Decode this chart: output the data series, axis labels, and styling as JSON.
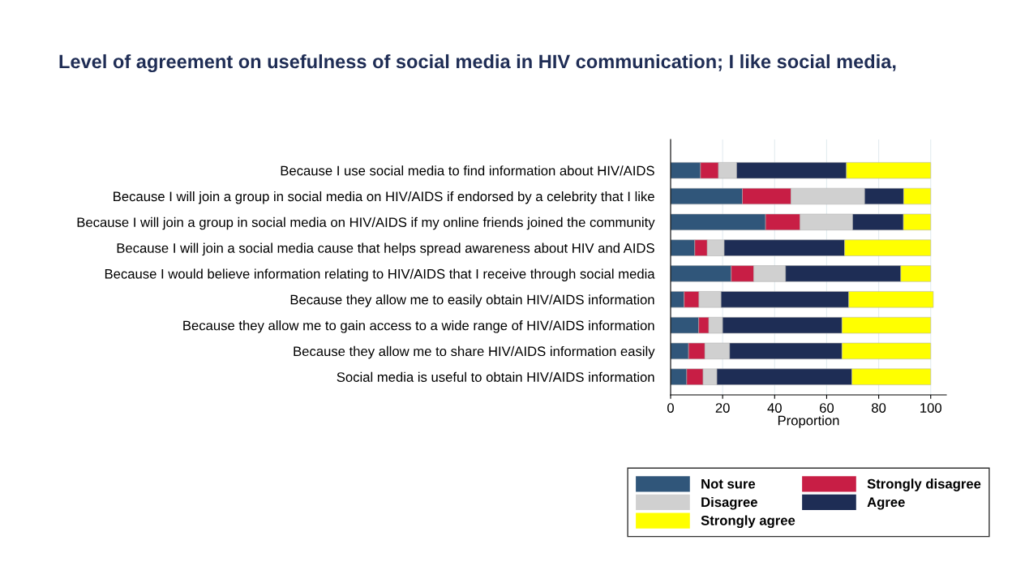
{
  "chart_data": {
    "type": "bar",
    "orientation": "horizontal",
    "stacked": true,
    "title": "Level of agreement on usefulness of social media in HIV communication; I like social media,",
    "xlabel": "Proportion",
    "categories": [
      "Because I use social media to find information about HIV/AIDS",
      "Because I will join a group in social media on HIV/AIDS if endorsed by a celebrity that I like",
      "Because I will join a group in social media on HIV/AIDS if my online friends joined the community",
      "Because I will join a social media cause that helps spread awareness about HIV and AIDS",
      "Because I would believe information relating to HIV/AIDS that I receive through social media",
      "Because they allow me to easily obtain HIV/AIDS information",
      "Because they allow me to gain access to a wide range of HIV/AIDS information",
      "Because they allow me to share HIV/AIDS information easily",
      "Social media is useful to obtain HIV/AIDS information"
    ],
    "series": [
      {
        "name": "Not sure",
        "color": "#30567a",
        "values": [
          11.5,
          27.6,
          36.5,
          9.3,
          23.3,
          5.2,
          10.8,
          6.9,
          6.2
        ]
      },
      {
        "name": "Strongly disagree",
        "color": "#c81e45",
        "values": [
          6.9,
          18.7,
          13.3,
          4.8,
          8.7,
          5.7,
          3.9,
          6.3,
          6.3
        ]
      },
      {
        "name": "Disagree",
        "color": "#d0d0d0",
        "values": [
          7.0,
          28.3,
          20.2,
          6.5,
          12.2,
          8.5,
          5.3,
          9.5,
          5.3
        ]
      },
      {
        "name": "Agree",
        "color": "#1e2d55",
        "values": [
          42.2,
          15.0,
          19.5,
          46.3,
          44.3,
          49.1,
          45.9,
          43.2,
          51.9
        ]
      },
      {
        "name": "Strongly agree",
        "color": "#ffff00",
        "values": [
          32.4,
          10.4,
          10.5,
          33.1,
          11.5,
          32.5,
          34.1,
          34.1,
          30.3
        ]
      }
    ],
    "xlim": [
      0,
      106
    ],
    "xticks": [
      0,
      20,
      40,
      60,
      80,
      100
    ],
    "grid": "x",
    "legend": "bottom"
  }
}
